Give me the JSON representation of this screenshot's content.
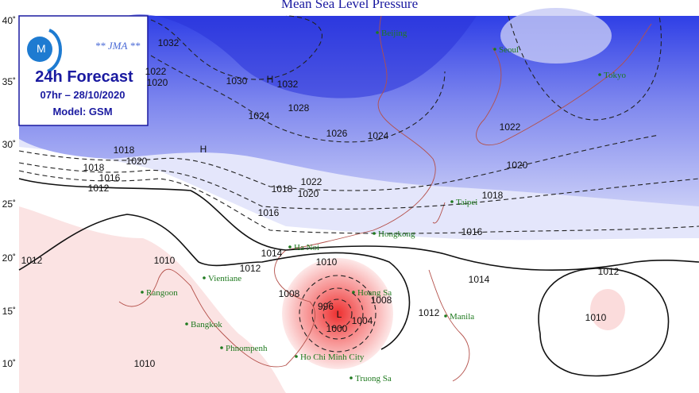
{
  "title": "Mean Sea Level Pressure",
  "info": {
    "agency": "** JMA **",
    "forecast": "24h Forecast",
    "time": "07hr – 28/10/2020",
    "model": "Model: GSM"
  },
  "latitude_labels": [
    "40˚",
    "35˚",
    "30˚",
    "25˚",
    "20˚",
    "15˚",
    "10˚"
  ],
  "cities": [
    "Beijing",
    "Seoul",
    "Tokyo",
    "Taipei",
    "Hongkong",
    "Ha Noi",
    "Vientiane",
    "Rangoon",
    "Bangkok",
    "Phnompenh",
    "Hoang Sa",
    "Ho Chi Minh City",
    "Manila",
    "Truong Sa"
  ],
  "isobar_labels": [
    1032,
    1022,
    1020,
    1030,
    1032,
    1024,
    1028,
    1026,
    1024,
    1022,
    1020,
    1018,
    1020,
    1018,
    1016,
    1012,
    1022,
    1020,
    1018,
    1016,
    1018,
    1016,
    1014,
    1012,
    1010,
    1014,
    1012,
    1010,
    1012,
    1010,
    1008,
    1008,
    1012,
    1004,
    1000,
    996,
    1010
  ],
  "pressure_centers": [
    "H",
    "H",
    "L"
  ]
}
